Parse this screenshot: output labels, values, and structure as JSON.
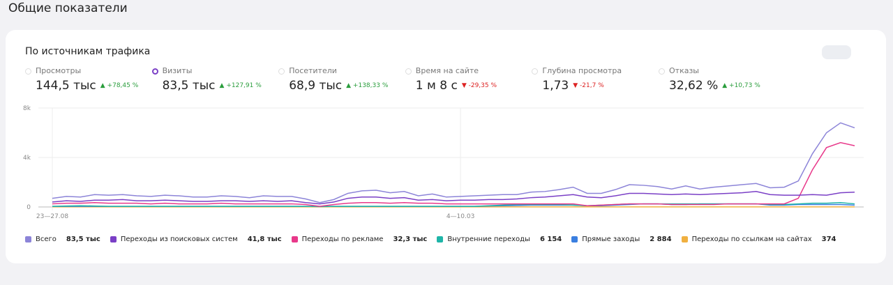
{
  "page_title": "Общие показатели",
  "card_title": "По источникам трафика",
  "metrics": [
    {
      "label": "Просмотры",
      "value": "144,5 тыс",
      "change": "+78,45 %",
      "trend": "up",
      "selected": false
    },
    {
      "label": "Визиты",
      "value": "83,5 тыс",
      "change": "+127,91 %",
      "trend": "up",
      "selected": true
    },
    {
      "label": "Посетители",
      "value": "68,9 тыс",
      "change": "+138,33 %",
      "trend": "up",
      "selected": false
    },
    {
      "label": "Время на сайте",
      "value": "1 м 8 с",
      "change": "-29,35 %",
      "trend": "down",
      "selected": false
    },
    {
      "label": "Глубина просмотра",
      "value": "1,73",
      "change": "-21,7 %",
      "trend": "down",
      "selected": false
    },
    {
      "label": "Отказы",
      "value": "32,62 %",
      "change": "+10,73 %",
      "trend": "up",
      "selected": false
    }
  ],
  "chart_data": {
    "type": "line",
    "categories": [
      "23—27.08",
      null,
      null,
      null,
      null,
      null,
      null,
      null,
      null,
      null,
      null,
      null,
      null,
      null,
      null,
      null,
      null,
      null,
      null,
      null,
      null,
      null,
      null,
      null,
      null,
      null,
      null,
      null,
      null,
      "4—10.03",
      null,
      null,
      null,
      null,
      null,
      null,
      null,
      null,
      null,
      null,
      null,
      null,
      null,
      null,
      null,
      null,
      null,
      null,
      null,
      null,
      null,
      null,
      null,
      null,
      null,
      null,
      null,
      null
    ],
    "ylim": [
      0,
      8000
    ],
    "yticks": [
      {
        "value": 0,
        "label": "0"
      },
      {
        "value": 4000,
        "label": "4k"
      },
      {
        "value": 8000,
        "label": "8k"
      }
    ],
    "grid": true,
    "series": [
      {
        "name": "Всего",
        "total_label": "83,5 тыс",
        "color": "#8c84d8",
        "values": [
          700,
          850,
          800,
          1000,
          950,
          1000,
          900,
          850,
          950,
          900,
          800,
          800,
          900,
          850,
          750,
          900,
          850,
          850,
          650,
          350,
          600,
          1100,
          1300,
          1350,
          1150,
          1250,
          900,
          1050,
          800,
          850,
          900,
          950,
          1000,
          1000,
          1200,
          1250,
          1400,
          1600,
          1100,
          1100,
          1400,
          1800,
          1750,
          1650,
          1450,
          1700,
          1450,
          1600,
          1700,
          1800,
          1900,
          1550,
          1600,
          2100,
          4300,
          6000,
          6800,
          6400
        ]
      },
      {
        "name": "Переходы из поисковых систем",
        "total_label": "41,8 тыс",
        "color": "#7a3fc6",
        "values": [
          400,
          500,
          450,
          550,
          550,
          600,
          500,
          500,
          550,
          500,
          450,
          450,
          500,
          500,
          450,
          500,
          450,
          500,
          350,
          250,
          400,
          700,
          800,
          800,
          700,
          750,
          550,
          600,
          500,
          550,
          550,
          600,
          600,
          650,
          750,
          800,
          900,
          1000,
          800,
          750,
          900,
          1100,
          1100,
          1050,
          1000,
          1050,
          1000,
          1050,
          1100,
          1150,
          1250,
          1000,
          950,
          950,
          1000,
          950,
          1150,
          1200
        ]
      },
      {
        "name": "Переходы по рекламе",
        "total_label": "32,3 тыс",
        "color": "#e8388a",
        "values": [
          250,
          300,
          300,
          350,
          300,
          300,
          300,
          250,
          300,
          250,
          250,
          250,
          300,
          250,
          250,
          250,
          250,
          250,
          200,
          50,
          200,
          300,
          350,
          350,
          300,
          350,
          300,
          300,
          250,
          250,
          250,
          250,
          250,
          250,
          250,
          250,
          250,
          250,
          100,
          150,
          200,
          250,
          250,
          250,
          200,
          200,
          200,
          200,
          250,
          250,
          250,
          250,
          250,
          700,
          3000,
          4800,
          5200,
          4950
        ]
      },
      {
        "name": "Внутренние переходы",
        "total_label": "6 154",
        "color": "#1fb5a8",
        "values": [
          50,
          80,
          100,
          80,
          50,
          50,
          50,
          50,
          50,
          50,
          50,
          50,
          50,
          50,
          50,
          50,
          50,
          50,
          50,
          30,
          50,
          50,
          50,
          50,
          50,
          50,
          50,
          50,
          50,
          50,
          50,
          100,
          150,
          200,
          200,
          200,
          200,
          150,
          100,
          150,
          200,
          250,
          250,
          250,
          250,
          250,
          250,
          250,
          250,
          250,
          250,
          200,
          200,
          250,
          300,
          300,
          350,
          250
        ]
      },
      {
        "name": "Прямые заходы",
        "total_label": "2 884",
        "color": "#3a7fe0",
        "values": [
          50,
          50,
          50,
          50,
          50,
          50,
          50,
          50,
          50,
          50,
          50,
          50,
          50,
          50,
          50,
          50,
          50,
          50,
          50,
          50,
          50,
          50,
          50,
          50,
          50,
          50,
          50,
          50,
          50,
          50,
          50,
          80,
          100,
          120,
          150,
          150,
          150,
          150,
          100,
          100,
          150,
          200,
          250,
          250,
          200,
          200,
          250,
          250,
          250,
          250,
          250,
          150,
          150,
          200,
          200,
          200,
          200,
          150
        ]
      },
      {
        "name": "Переходы по ссылкам на сайтах",
        "total_label": "374",
        "color": "#f0b040",
        "values": [
          10,
          10,
          10,
          10,
          10,
          10,
          10,
          10,
          10,
          10,
          10,
          10,
          10,
          10,
          10,
          10,
          10,
          10,
          10,
          10,
          10,
          10,
          10,
          10,
          10,
          10,
          10,
          10,
          10,
          10,
          10,
          10,
          10,
          10,
          10,
          10,
          10,
          10,
          10,
          10,
          10,
          10,
          10,
          10,
          10,
          10,
          10,
          10,
          10,
          10,
          10,
          10,
          10,
          10,
          10,
          10,
          10,
          10
        ]
      }
    ]
  }
}
